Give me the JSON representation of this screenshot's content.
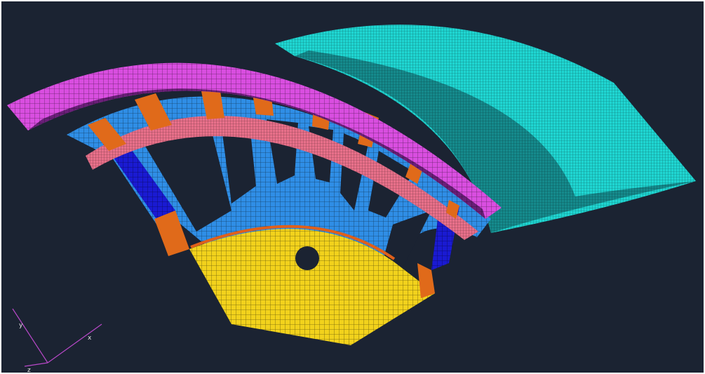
{
  "axis_triad": {
    "labels": [
      "y",
      "x",
      "z"
    ]
  }
}
